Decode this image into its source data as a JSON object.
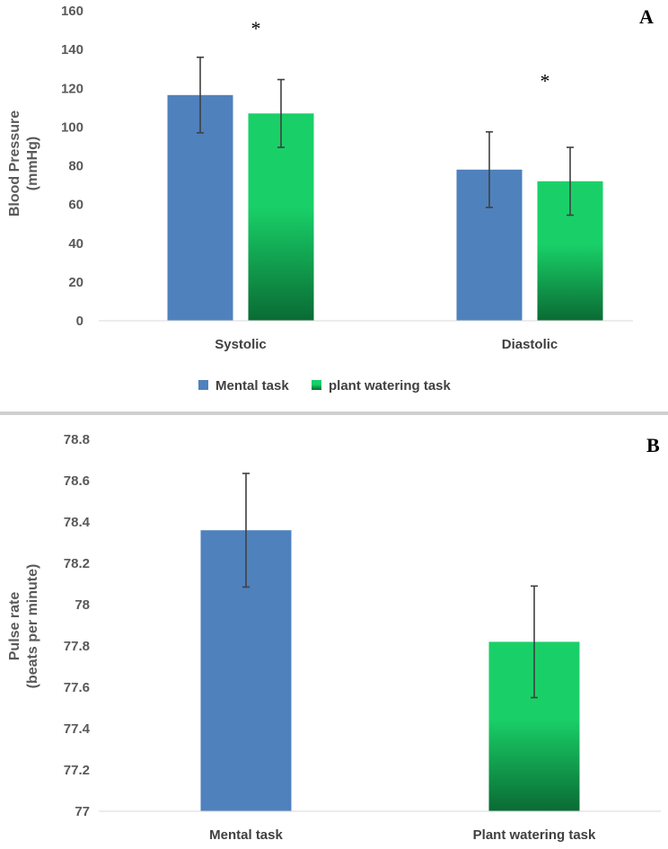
{
  "colors": {
    "mental": "#4F81BD",
    "plant_top": "#19D068",
    "plant_bottom": "#0A6B34",
    "axis": "#D9D9D9",
    "error": "#404040",
    "separator": "#D0D0D0"
  },
  "chart_data": [
    {
      "type": "bar",
      "panel_label": "A",
      "categories": [
        "Systolic",
        "Diastolic"
      ],
      "series": [
        {
          "name": "Mental task",
          "values": [
            116.5,
            78
          ],
          "errors": [
            19.5,
            19.5
          ]
        },
        {
          "name": "plant watering task",
          "values": [
            107,
            72
          ],
          "errors": [
            17.5,
            17.5
          ]
        }
      ],
      "ylabel_lines": [
        "Blood Pressure",
        "(mmHg)"
      ],
      "ylim": [
        0,
        160
      ],
      "yticks": [
        0,
        20,
        40,
        60,
        80,
        100,
        120,
        140,
        160
      ],
      "annotations": [
        {
          "text": "*",
          "category": "Systolic",
          "value": 153
        },
        {
          "text": "*",
          "category": "Diastolic",
          "value": 126
        }
      ],
      "legend": "bottom",
      "grid": false
    },
    {
      "type": "bar",
      "panel_label": "B",
      "categories": [
        "Mental task",
        "Plant watering task"
      ],
      "values": [
        78.36,
        77.82
      ],
      "errors": [
        0.275,
        0.27
      ],
      "ylabel_lines": [
        "Pulse rate",
        "(beats per minute)"
      ],
      "ylim": [
        77,
        78.8
      ],
      "yticks": [
        "77",
        "77.2",
        "77.4",
        "77.6",
        "77.8",
        "78",
        "78.2",
        "78.4",
        "78.6",
        "78.8"
      ],
      "grid": false
    }
  ]
}
